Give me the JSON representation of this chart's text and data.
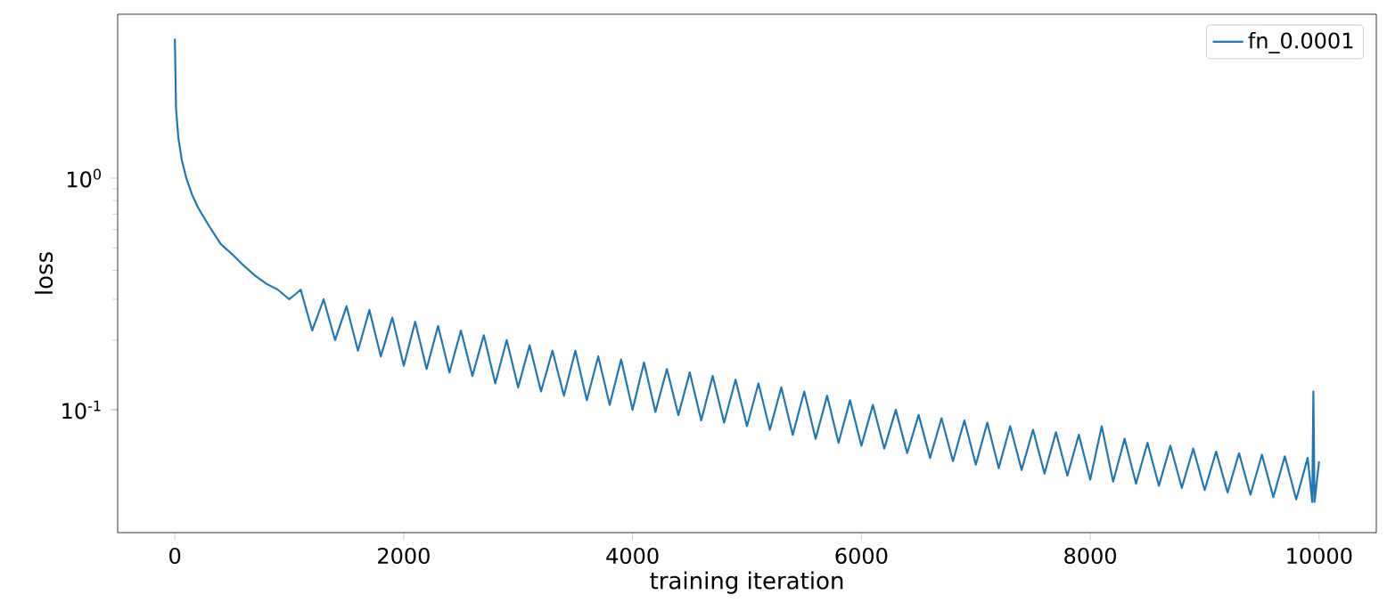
{
  "chart_data": {
    "type": "line",
    "xlabel": "training iteration",
    "ylabel": "loss",
    "log": "y",
    "legend": "top right",
    "marker": "none",
    "line_style": "solid",
    "xlim": [
      -500,
      10500
    ],
    "xticks": [
      0,
      2000,
      4000,
      6000,
      8000,
      10000
    ],
    "ylim": [
      0.0295,
      5.1
    ],
    "yticks": [
      {
        "value": 0.1,
        "label": "10$^{-1}$"
      },
      {
        "value": 1,
        "label": "10$^{0}$"
      }
    ],
    "series": [
      {
        "name": "fn_0.0001",
        "color": "#1f77b4",
        "x": [
          0,
          10,
          30,
          60,
          100,
          150,
          200,
          300,
          400,
          500,
          600,
          700,
          800,
          900,
          1000,
          1100,
          1200,
          1300,
          1400,
          1500,
          1600,
          1700,
          1800,
          1900,
          2000,
          2100,
          2200,
          2300,
          2400,
          2500,
          2600,
          2700,
          2800,
          2900,
          3000,
          3100,
          3200,
          3300,
          3400,
          3500,
          3600,
          3700,
          3800,
          3900,
          4000,
          4100,
          4200,
          4300,
          4400,
          4500,
          4600,
          4700,
          4800,
          4900,
          5000,
          5100,
          5200,
          5300,
          5400,
          5500,
          5600,
          5700,
          5800,
          5900,
          6000,
          6100,
          6200,
          6300,
          6400,
          6500,
          6600,
          6700,
          6800,
          6900,
          7000,
          7100,
          7200,
          7300,
          7400,
          7500,
          7600,
          7700,
          7800,
          7900,
          8000,
          8100,
          8200,
          8300,
          8400,
          8500,
          8600,
          8700,
          8800,
          8900,
          9000,
          9100,
          9200,
          9300,
          9400,
          9500,
          9600,
          9700,
          9800,
          9900,
          9940,
          9950,
          9960,
          10000
        ],
        "values": [
          4.0,
          2.0,
          1.5,
          1.2,
          1.0,
          0.85,
          0.75,
          0.62,
          0.52,
          0.47,
          0.42,
          0.38,
          0.35,
          0.33,
          0.3,
          0.33,
          0.22,
          0.3,
          0.2,
          0.28,
          0.18,
          0.27,
          0.17,
          0.25,
          0.155,
          0.24,
          0.15,
          0.23,
          0.145,
          0.22,
          0.14,
          0.21,
          0.13,
          0.2,
          0.125,
          0.19,
          0.12,
          0.18,
          0.115,
          0.18,
          0.11,
          0.17,
          0.105,
          0.165,
          0.1,
          0.16,
          0.098,
          0.15,
          0.095,
          0.145,
          0.09,
          0.14,
          0.088,
          0.135,
          0.085,
          0.13,
          0.082,
          0.125,
          0.078,
          0.12,
          0.075,
          0.115,
          0.072,
          0.11,
          0.07,
          0.105,
          0.068,
          0.1,
          0.065,
          0.095,
          0.062,
          0.092,
          0.06,
          0.09,
          0.058,
          0.088,
          0.056,
          0.085,
          0.055,
          0.082,
          0.053,
          0.08,
          0.052,
          0.078,
          0.05,
          0.085,
          0.049,
          0.075,
          0.048,
          0.072,
          0.047,
          0.07,
          0.046,
          0.068,
          0.045,
          0.066,
          0.044,
          0.065,
          0.043,
          0.064,
          0.042,
          0.063,
          0.041,
          0.062,
          0.04,
          0.12,
          0.04,
          0.06
        ]
      }
    ]
  }
}
